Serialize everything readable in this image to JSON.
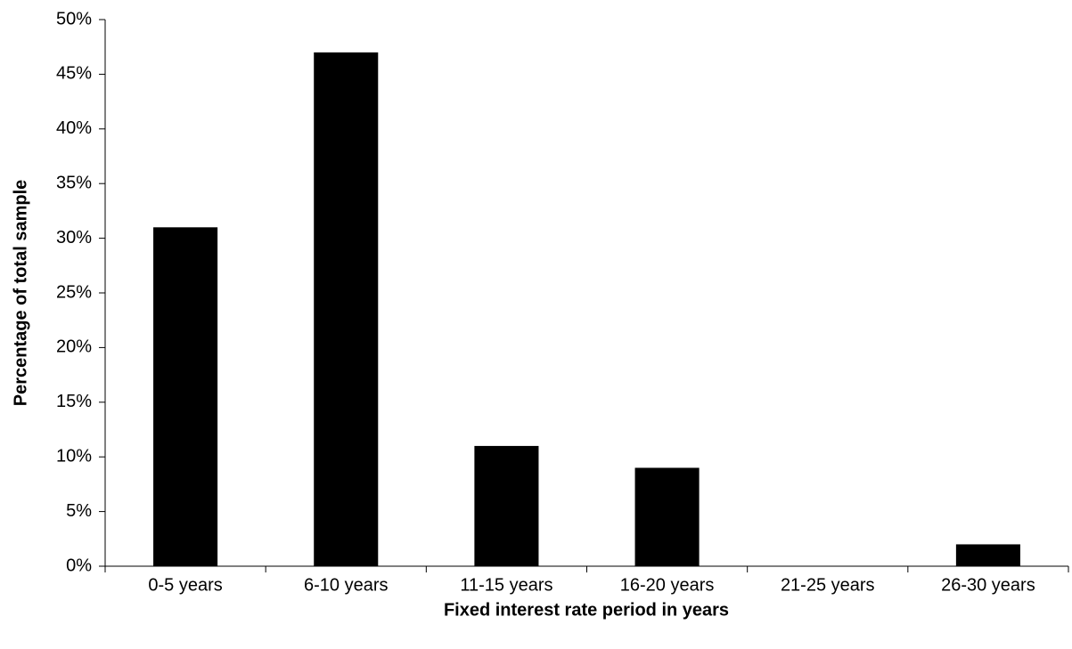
{
  "chart_data": {
    "type": "bar",
    "categories": [
      "0-5 years",
      "6-10 years",
      "11-15 years",
      "16-20 years",
      "21-25 years",
      "26-30 years"
    ],
    "values": [
      31,
      47,
      11,
      9,
      0,
      2
    ],
    "color": "#000000",
    "xlabel": "Fixed interest rate period in years",
    "ylabel": "Percentage of total sample",
    "ylim": [
      0,
      50
    ],
    "yticks": [
      {
        "value": 0,
        "label": "0%"
      },
      {
        "value": 5,
        "label": "5%"
      },
      {
        "value": 10,
        "label": "10%"
      },
      {
        "value": 15,
        "label": "15%"
      },
      {
        "value": 20,
        "label": "20%"
      },
      {
        "value": 25,
        "label": "25%"
      },
      {
        "value": 30,
        "label": "30%"
      },
      {
        "value": 35,
        "label": "35%"
      },
      {
        "value": 40,
        "label": "40%"
      },
      {
        "value": 45,
        "label": "45%"
      },
      {
        "value": 50,
        "label": "50%"
      }
    ],
    "grid": false
  }
}
